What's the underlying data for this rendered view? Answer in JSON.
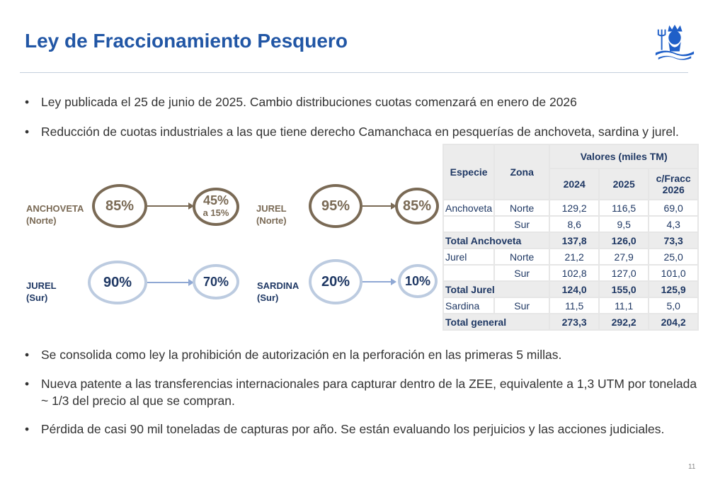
{
  "title": "Ley de Fraccionamiento Pesquero",
  "logo": "neptune-trident-logo",
  "bullets_top": [
    "Ley publicada el 25 de junio de 2025. Cambio distribuciones cuotas comenzará en enero de 2026",
    "Reducción de cuotas industriales a las que tiene derecho Camanchaca en pesquerías de anchoveta, sardina y jurel."
  ],
  "diagram": [
    {
      "species": "ANCHOVETA",
      "zone": "(Norte)",
      "from": "85%",
      "to": "45%",
      "to_sub": "a 15%"
    },
    {
      "species": "JUREL",
      "zone": "(Norte)",
      "from": "95%",
      "to": "85%"
    },
    {
      "species": "JUREL",
      "zone": "(Sur)",
      "from": "90%",
      "to": "70%"
    },
    {
      "species": "SARDINA",
      "zone": "(Sur)",
      "from": "20%",
      "to": "10%"
    }
  ],
  "table": {
    "headers": {
      "especie": "Especie",
      "zona": "Zona",
      "valores": "Valores (miles TM)",
      "y2024": "2024",
      "y2025": "2025",
      "frac": "c/Fracc 2026"
    },
    "rows": [
      {
        "especie": "Anchoveta",
        "zona": "Norte",
        "v": [
          "129,2",
          "116,5",
          "69,0"
        ]
      },
      {
        "especie": "",
        "zona": "Sur",
        "v": [
          "8,6",
          "9,5",
          "4,3"
        ]
      },
      {
        "total": "Total Anchoveta",
        "v": [
          "137,8",
          "126,0",
          "73,3"
        ]
      },
      {
        "especie": "Jurel",
        "zona": "Norte",
        "v": [
          "21,2",
          "27,9",
          "25,0"
        ]
      },
      {
        "especie": "",
        "zona": "Sur",
        "v": [
          "102,8",
          "127,0",
          "101,0"
        ]
      },
      {
        "total": "Total Jurel",
        "v": [
          "124,0",
          "155,0",
          "125,9"
        ]
      },
      {
        "especie": "Sardina",
        "zona": "Sur",
        "v": [
          "11,5",
          "11,1",
          "5,0"
        ]
      },
      {
        "total": "Total general",
        "v": [
          "273,3",
          "292,2",
          "204,2"
        ]
      }
    ]
  },
  "bullets_bottom": [
    "Se consolida como ley la prohibición de autorización en la perforación en las primeras 5 millas.",
    "Nueva patente a las transferencias internacionales para capturar dentro de la ZEE, equivalente a 1,3 UTM por tonelada ~ 1/3 del precio al que se compran.",
    "Pérdida de casi 90 mil toneladas de capturas por año. Se están evaluando los perjuicios y las acciones judiciales."
  ],
  "page_number": "11",
  "colors": {
    "title": "#2156a5",
    "brown": "#7a6a55",
    "light_blue": "#bccbe0",
    "navy": "#1f3864"
  }
}
